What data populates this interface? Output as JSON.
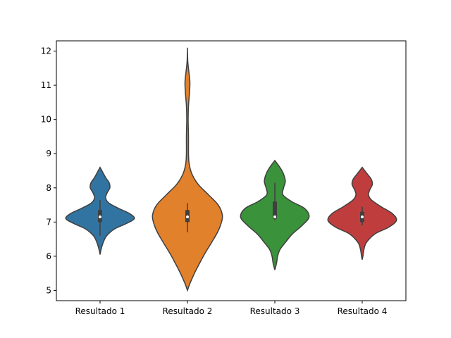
{
  "chart_data": {
    "type": "violin",
    "title": "",
    "xlabel": "",
    "ylabel": "",
    "ylim": [
      4.7,
      12.3
    ],
    "yticks": [
      5,
      6,
      7,
      8,
      9,
      10,
      11,
      12
    ],
    "ytick_labels": [
      "5",
      "6",
      "7",
      "8",
      "9",
      "10",
      "11",
      "12"
    ],
    "grid": false,
    "legend": "none",
    "categories": [
      "Resultado 1",
      "Resultado 2",
      "Resultado 3",
      "Resultado 4"
    ],
    "series": [
      {
        "category": "Resultado 1",
        "color": "#3274a1",
        "min": 6.6,
        "q1": 7.0,
        "median": 7.15,
        "q3": 7.35,
        "max": 7.65,
        "kde_range": [
          6.05,
          8.6
        ],
        "density": [
          [
            6.05,
            0.0
          ],
          [
            6.2,
            0.03
          ],
          [
            6.4,
            0.09
          ],
          [
            6.6,
            0.19
          ],
          [
            6.8,
            0.42
          ],
          [
            6.95,
            0.74
          ],
          [
            7.1,
            0.98
          ],
          [
            7.25,
            0.84
          ],
          [
            7.4,
            0.53
          ],
          [
            7.55,
            0.26
          ],
          [
            7.7,
            0.16
          ],
          [
            7.85,
            0.2
          ],
          [
            8.0,
            0.28
          ],
          [
            8.15,
            0.26
          ],
          [
            8.3,
            0.16
          ],
          [
            8.45,
            0.08
          ],
          [
            8.6,
            0.0
          ]
        ]
      },
      {
        "category": "Resultado 2",
        "color": "#e1812c",
        "min": 6.7,
        "q1": 7.0,
        "median": 7.15,
        "q3": 7.35,
        "max": 7.55,
        "kde_range": [
          5.0,
          12.1
        ],
        "density": [
          [
            5.0,
            0.0
          ],
          [
            5.2,
            0.07
          ],
          [
            5.5,
            0.2
          ],
          [
            5.8,
            0.35
          ],
          [
            6.1,
            0.51
          ],
          [
            6.4,
            0.69
          ],
          [
            6.7,
            0.86
          ],
          [
            6.95,
            0.96
          ],
          [
            7.2,
            1.0
          ],
          [
            7.5,
            0.88
          ],
          [
            7.8,
            0.6
          ],
          [
            8.1,
            0.31
          ],
          [
            8.4,
            0.13
          ],
          [
            8.7,
            0.05
          ],
          [
            9.0,
            0.03
          ],
          [
            9.5,
            0.03
          ],
          [
            10.0,
            0.02
          ],
          [
            10.4,
            0.03
          ],
          [
            10.8,
            0.06
          ],
          [
            11.1,
            0.07
          ],
          [
            11.4,
            0.04
          ],
          [
            11.7,
            0.01
          ],
          [
            12.1,
            0.0
          ]
        ]
      },
      {
        "category": "Resultado 3",
        "color": "#3a923a",
        "min": 7.05,
        "q1": 7.1,
        "median": 7.15,
        "q3": 7.6,
        "max": 8.15,
        "kde_range": [
          5.6,
          8.8
        ],
        "density": [
          [
            5.6,
            0.0
          ],
          [
            5.8,
            0.05
          ],
          [
            6.0,
            0.08
          ],
          [
            6.2,
            0.15
          ],
          [
            6.4,
            0.3
          ],
          [
            6.65,
            0.5
          ],
          [
            6.9,
            0.78
          ],
          [
            7.15,
            0.98
          ],
          [
            7.4,
            0.85
          ],
          [
            7.6,
            0.48
          ],
          [
            7.8,
            0.23
          ],
          [
            8.0,
            0.25
          ],
          [
            8.2,
            0.3
          ],
          [
            8.45,
            0.23
          ],
          [
            8.65,
            0.11
          ],
          [
            8.8,
            0.0
          ]
        ]
      },
      {
        "category": "Resultado 4",
        "color": "#c03d3e",
        "min": 6.9,
        "q1": 7.0,
        "median": 7.15,
        "q3": 7.3,
        "max": 7.45,
        "kde_range": [
          5.9,
          8.6
        ],
        "density": [
          [
            5.9,
            0.0
          ],
          [
            6.0,
            0.02
          ],
          [
            6.2,
            0.05
          ],
          [
            6.4,
            0.12
          ],
          [
            6.65,
            0.36
          ],
          [
            6.85,
            0.76
          ],
          [
            7.05,
            0.98
          ],
          [
            7.25,
            0.86
          ],
          [
            7.45,
            0.54
          ],
          [
            7.65,
            0.26
          ],
          [
            7.8,
            0.18
          ],
          [
            7.95,
            0.22
          ],
          [
            8.1,
            0.29
          ],
          [
            8.25,
            0.26
          ],
          [
            8.4,
            0.15
          ],
          [
            8.6,
            0.0
          ]
        ]
      }
    ]
  }
}
